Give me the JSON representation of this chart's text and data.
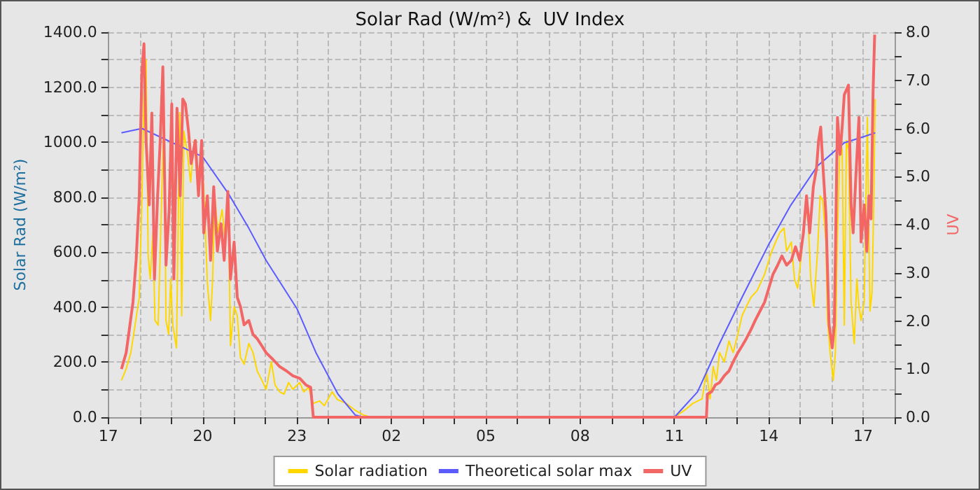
{
  "chart_data": {
    "type": "line",
    "title": "Solar Rad (W/m²) &  UV Index",
    "ylabel": "Solar Rad (W/m²)",
    "y2label": "UV",
    "grid": true,
    "legend": "bottom",
    "marker": "none",
    "line_style": "solid",
    "xlim": [
      "--01-01T17:00",
      "--01-02T18:00"
    ],
    "xticks": [
      {
        "value": "--01-01T17:00",
        "label": "17"
      },
      {
        "value": "--01-01T18:00",
        "label": null
      },
      {
        "value": "--01-01T19:00",
        "label": null
      },
      {
        "value": "--01-01T20:00",
        "label": "20"
      },
      {
        "value": "--01-01T21:00",
        "label": null
      },
      {
        "value": "--01-01T22:00",
        "label": null
      },
      {
        "value": "--01-01T23:00",
        "label": "23"
      },
      {
        "value": "--01-02T00:00",
        "label": null
      },
      {
        "value": "--01-02T01:00",
        "label": null
      },
      {
        "value": "--01-02T02:00",
        "label": "02"
      },
      {
        "value": "--01-02T03:00",
        "label": null
      },
      {
        "value": "--01-02T04:00",
        "label": null
      },
      {
        "value": "--01-02T05:00",
        "label": "05"
      },
      {
        "value": "--01-02T06:00",
        "label": null
      },
      {
        "value": "--01-02T07:00",
        "label": null
      },
      {
        "value": "--01-02T08:00",
        "label": "08"
      },
      {
        "value": "--01-02T09:00",
        "label": null
      },
      {
        "value": "--01-02T10:00",
        "label": null
      },
      {
        "value": "--01-02T11:00",
        "label": "11"
      },
      {
        "value": "--01-02T12:00",
        "label": null
      },
      {
        "value": "--01-02T13:00",
        "label": null
      },
      {
        "value": "--01-02T14:00",
        "label": "14"
      },
      {
        "value": "--01-02T15:00",
        "label": null
      },
      {
        "value": "--01-02T16:00",
        "label": null
      },
      {
        "value": "--01-02T17:00",
        "label": "17"
      },
      {
        "value": "--01-02T18:00",
        "label": null
      }
    ],
    "ylim": [
      0,
      1400
    ],
    "yticks": [
      {
        "value": 0,
        "label": "0.0"
      },
      {
        "value": 100,
        "label": null
      },
      {
        "value": 200,
        "label": "200.0"
      },
      {
        "value": 300,
        "label": null
      },
      {
        "value": 400,
        "label": "400.0"
      },
      {
        "value": 500,
        "label": null
      },
      {
        "value": 600,
        "label": "600.0"
      },
      {
        "value": 700,
        "label": null
      },
      {
        "value": 800,
        "label": "800.0"
      },
      {
        "value": 900,
        "label": null
      },
      {
        "value": 1000,
        "label": "1000.0"
      },
      {
        "value": 1100,
        "label": null
      },
      {
        "value": 1200,
        "label": "1200.0"
      },
      {
        "value": 1300,
        "label": null
      },
      {
        "value": 1400,
        "label": "1400.0"
      }
    ],
    "y2lim": [
      0,
      8
    ],
    "y2ticks": [
      {
        "value": 0,
        "label": "0.0"
      },
      {
        "value": 0.5,
        "label": null
      },
      {
        "value": 1,
        "label": "1.0"
      },
      {
        "value": 1.5,
        "label": null
      },
      {
        "value": 2,
        "label": "2.0"
      },
      {
        "value": 2.5,
        "label": null
      },
      {
        "value": 3,
        "label": "3.0"
      },
      {
        "value": 3.5,
        "label": null
      },
      {
        "value": 4,
        "label": "4.0"
      },
      {
        "value": 4.5,
        "label": null
      },
      {
        "value": 5,
        "label": "5.0"
      },
      {
        "value": 5.5,
        "label": null
      },
      {
        "value": 6,
        "label": "6.0"
      },
      {
        "value": 6.5,
        "label": null
      },
      {
        "value": 7,
        "label": "7.0"
      },
      {
        "value": 7.5,
        "label": null
      },
      {
        "value": 8,
        "label": "8.0"
      }
    ],
    "series": [
      {
        "name": "Solar radiation",
        "color": "#ffd700",
        "x": [
          "--01-01T17:25",
          "--01-01T17:34",
          "--01-01T17:43",
          "--01-01T17:51",
          "--01-01T17:59",
          "--01-01T18:04",
          "--01-01T18:08",
          "--01-01T18:12",
          "--01-01T18:16",
          "--01-01T18:20",
          "--01-01T18:25",
          "--01-01T18:29",
          "--01-01T18:35",
          "--01-01T18:40",
          "--01-01T18:46",
          "--01-01T18:50",
          "--01-01T18:55",
          "--01-01T18:59",
          "--01-01T19:03",
          "--01-01T19:10",
          "--01-01T19:16",
          "--01-01T19:20",
          "--01-01T19:24",
          "--01-01T19:30",
          "--01-01T19:37",
          "--01-01T19:44",
          "--01-01T19:50",
          "--01-01T19:56",
          "--01-01T20:02",
          "--01-01T20:09",
          "--01-01T20:15",
          "--01-01T20:19",
          "--01-01T20:23",
          "--01-01T20:29",
          "--01-01T20:37",
          "--01-01T20:43",
          "--01-01T20:49",
          "--01-01T20:53",
          "--01-01T21:00",
          "--01-01T21:06",
          "--01-01T21:12",
          "--01-01T21:19",
          "--01-01T21:28",
          "--01-01T21:36",
          "--01-01T21:44",
          "--01-01T21:53",
          "--01-01T22:01",
          "--01-01T22:11",
          "--01-01T22:18",
          "--01-01T22:27",
          "--01-01T22:35",
          "--01-01T22:44",
          "--01-01T22:52",
          "--01-01T23:05",
          "--01-01T23:13",
          "--01-01T23:22",
          "--01-01T23:31",
          "--01-01T23:43",
          "--01-01T23:52",
          "--01-02T00:07",
          "--01-02T00:17",
          "--01-02T00:34",
          "--01-02T00:51",
          "--01-02T01:08",
          "--01-02T01:21",
          "--01-02T11:00",
          "--01-02T11:19",
          "--01-02T11:35",
          "--01-02T11:53",
          "--01-02T12:01",
          "--01-02T12:08",
          "--01-02T12:14",
          "--01-02T12:20",
          "--01-02T12:26",
          "--01-02T12:35",
          "--01-02T12:44",
          "--01-02T12:52",
          "--01-02T13:01",
          "--01-02T13:09",
          "--01-02T13:17",
          "--01-02T13:26",
          "--01-02T13:38",
          "--01-02T13:52",
          "--01-02T14:04",
          "--01-02T14:13",
          "--01-02T14:21",
          "--01-02T14:29",
          "--01-02T14:34",
          "--01-02T14:43",
          "--01-02T14:49",
          "--01-02T14:55",
          "--01-02T15:01",
          "--01-02T15:08",
          "--01-02T15:14",
          "--01-02T15:20",
          "--01-02T15:26",
          "--01-02T15:33",
          "--01-02T15:38",
          "--01-02T15:43",
          "--01-02T15:49",
          "--01-02T15:52",
          "--01-02T15:57",
          "--01-02T16:03",
          "--01-02T16:07",
          "--01-02T16:11",
          "--01-02T16:16",
          "--01-02T16:20",
          "--01-02T16:24",
          "--01-02T16:28",
          "--01-02T16:32",
          "--01-02T16:37",
          "--01-02T16:43",
          "--01-02T16:48",
          "--01-02T16:52",
          "--01-02T16:56",
          "--01-02T17:02",
          "--01-02T17:08",
          "--01-02T17:13",
          "--01-02T17:17",
          "--01-02T17:20",
          "--01-02T17:23"
        ],
        "values": [
          134,
          176,
          235,
          335,
          436,
          788,
          1174,
          1300,
          587,
          503,
          671,
          352,
          335,
          671,
          1107,
          352,
          302,
          503,
          335,
          252,
          1107,
          369,
          1040,
          972,
          855,
          1006,
          872,
          939,
          838,
          486,
          352,
          503,
          805,
          671,
          755,
          637,
          755,
          260,
          402,
          369,
          218,
          193,
          268,
          235,
          168,
          134,
          101,
          201,
          117,
          92,
          84,
          126,
          101,
          126,
          92,
          109,
          50,
          59,
          42,
          92,
          64,
          50,
          25,
          7,
          0,
          0,
          25,
          50,
          67,
          168,
          67,
          184,
          134,
          235,
          201,
          277,
          235,
          302,
          369,
          402,
          436,
          461,
          520,
          595,
          637,
          671,
          688,
          604,
          637,
          503,
          469,
          570,
          704,
          771,
          503,
          402,
          604,
          805,
          788,
          637,
          352,
          235,
          134,
          235,
          671,
          1006,
          972,
          335,
          1006,
          972,
          419,
          268,
          503,
          402,
          352,
          419,
          1090,
          386,
          453,
          755,
          1157
        ]
      },
      {
        "name": "Theoretical solar max",
        "color": "#5b5bff",
        "x": [
          "--01-01T17:25",
          "--01-01T18:04",
          "--01-01T20:00",
          "--01-01T20:49",
          "--01-01T21:28",
          "--01-01T22:01",
          "--01-01T23:00",
          "--01-01T23:36",
          "--01-02T00:18",
          "--01-02T00:51",
          "--01-02T01:06",
          "--01-02T11:00",
          "--01-02T11:44",
          "--01-02T12:26",
          "--01-02T13:09",
          "--01-02T14:00",
          "--01-02T14:42",
          "--01-02T15:33",
          "--01-02T16:24",
          "--01-02T16:59",
          "--01-02T17:23"
        ],
        "values": [
          1034,
          1050,
          947,
          813,
          687,
          570,
          394,
          235,
          84,
          8,
          0,
          0,
          92,
          268,
          436,
          629,
          771,
          914,
          998,
          1019,
          1034
        ]
      },
      {
        "name": "UV",
        "color": "#f26666",
        "axis": "y2",
        "x": [
          "--01-01T17:25",
          "--01-01T17:34",
          "--01-01T17:40",
          "--01-01T17:47",
          "--01-01T17:53",
          "--01-01T17:59",
          "--01-01T18:04",
          "--01-01T18:08",
          "--01-01T18:12",
          "--01-01T18:18",
          "--01-01T18:23",
          "--01-01T18:28",
          "--01-01T18:34",
          "--01-01T18:39",
          "--01-01T18:44",
          "--01-01T18:50",
          "--01-01T18:56",
          "--01-01T19:01",
          "--01-01T19:05",
          "--01-01T19:11",
          "--01-01T19:17",
          "--01-01T19:22",
          "--01-01T19:27",
          "--01-01T19:33",
          "--01-01T19:38",
          "--01-01T19:46",
          "--01-01T19:52",
          "--01-01T19:58",
          "--01-01T20:02",
          "--01-01T20:09",
          "--01-01T20:15",
          "--01-01T20:21",
          "--01-01T20:28",
          "--01-01T20:35",
          "--01-01T20:41",
          "--01-01T20:48",
          "--01-01T20:53",
          "--01-01T21:00",
          "--01-01T21:06",
          "--01-01T21:12",
          "--01-01T21:19",
          "--01-01T21:28",
          "--01-01T21:36",
          "--01-01T21:44",
          "--01-01T21:53",
          "--01-01T22:01",
          "--01-01T22:14",
          "--01-01T22:27",
          "--01-01T22:40",
          "--01-01T22:52",
          "--01-01T23:05",
          "--01-01T23:17",
          "--01-01T23:26",
          "--01-01T23:31",
          "--01-02T12:01",
          "--01-02T12:03",
          "--01-02T12:11",
          "--01-02T12:18",
          "--01-02T12:26",
          "--01-02T12:35",
          "--01-02T12:44",
          "--01-02T12:52",
          "--01-02T13:01",
          "--01-02T13:09",
          "--01-02T13:17",
          "--01-02T13:26",
          "--01-02T13:34",
          "--01-02T13:43",
          "--01-02T13:52",
          "--01-02T14:00",
          "--01-02T14:08",
          "--01-02T14:17",
          "--01-02T14:25",
          "--01-02T14:34",
          "--01-02T14:43",
          "--01-02T14:51",
          "--01-02T14:59",
          "--01-02T15:06",
          "--01-02T15:12",
          "--01-02T15:18",
          "--01-02T15:25",
          "--01-02T15:31",
          "--01-02T15:35",
          "--01-02T15:39",
          "--01-02T15:43",
          "--01-02T15:49",
          "--01-02T15:55",
          "--01-02T16:01",
          "--01-02T16:05",
          "--01-02T16:11",
          "--01-02T16:16",
          "--01-02T16:20",
          "--01-02T16:24",
          "--01-02T16:28",
          "--01-02T16:32",
          "--01-02T16:37",
          "--01-02T16:41",
          "--01-02T16:46",
          "--01-02T16:52",
          "--01-02T16:56",
          "--01-02T17:02",
          "--01-02T17:07",
          "--01-02T17:11",
          "--01-02T17:15",
          "--01-02T17:19",
          "--01-02T17:22"
        ],
        "values": [
          1.0,
          1.34,
          1.82,
          2.39,
          3.26,
          4.6,
          7.18,
          7.76,
          5.75,
          4.41,
          6.32,
          2.87,
          4.6,
          5.75,
          7.28,
          3.16,
          4.31,
          6.51,
          2.87,
          6.42,
          4.6,
          6.61,
          6.51,
          5.94,
          5.27,
          5.75,
          4.6,
          5.75,
          3.83,
          4.6,
          3.26,
          4.79,
          3.45,
          4.02,
          3.26,
          4.69,
          2.87,
          3.64,
          2.49,
          2.3,
          1.92,
          2.01,
          1.72,
          1.63,
          1.48,
          1.34,
          1.2,
          1.05,
          0.96,
          0.86,
          0.81,
          0.67,
          0.62,
          0,
          0,
          0.48,
          0.53,
          0.67,
          0.72,
          0.86,
          0.96,
          1.15,
          1.34,
          1.48,
          1.63,
          1.82,
          2.01,
          2.2,
          2.39,
          2.68,
          2.97,
          3.16,
          3.35,
          3.16,
          3.26,
          3.54,
          3.26,
          3.83,
          4.6,
          3.83,
          4.79,
          5.17,
          5.75,
          6.03,
          5.27,
          4.21,
          1.92,
          1.44,
          1.92,
          6.23,
          5.46,
          6.03,
          6.7,
          6.8,
          6.9,
          4.41,
          3.83,
          4.98,
          6.23,
          3.64,
          4.41,
          3.45,
          4.6,
          4.12,
          6.8,
          7.95
        ]
      }
    ]
  }
}
